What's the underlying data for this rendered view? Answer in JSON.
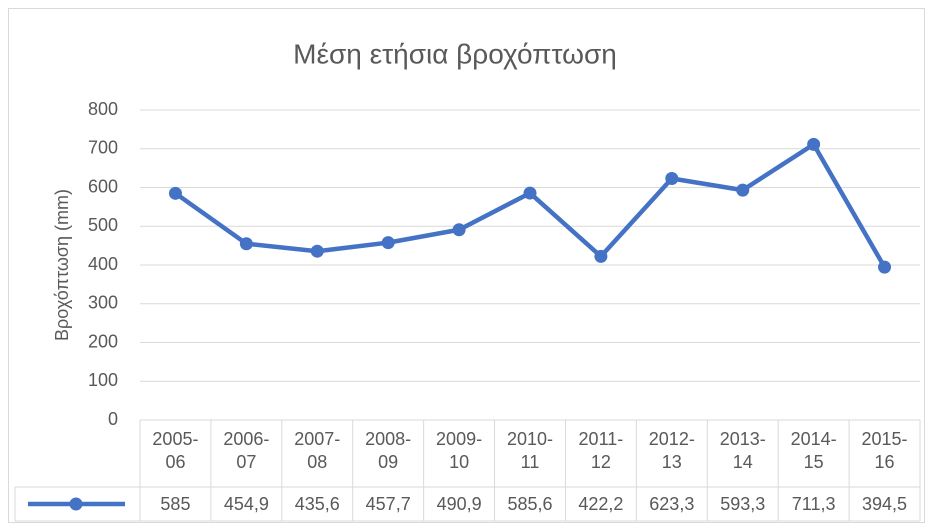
{
  "chart_data": {
    "type": "line",
    "title": "Μέση ετήσια βροχόπτωση",
    "ylabel": "Βροχόπτωση (mm)",
    "categories": [
      "2005-06",
      "2006-07",
      "2007-08",
      "2008-09",
      "2009-10",
      "2010-11",
      "2011-12",
      "2012-13",
      "2013-14",
      "2014-15",
      "2015-16"
    ],
    "series": [
      {
        "color": "#4472c4",
        "values": [
          585,
          454.9,
          435.6,
          457.7,
          490.9,
          585.6,
          422.2,
          623.3,
          593.3,
          711.3,
          394.5
        ],
        "value_labels": [
          "585",
          "454,9",
          "435,6",
          "457,7",
          "490,9",
          "585,6",
          "422,2",
          "623,3",
          "593,3",
          "711,3",
          "394,5"
        ]
      }
    ],
    "ylim": [
      0,
      800
    ],
    "yticks": [
      0,
      100,
      200,
      300,
      400,
      500,
      600,
      700,
      800
    ],
    "grid": true,
    "data_table": true
  }
}
